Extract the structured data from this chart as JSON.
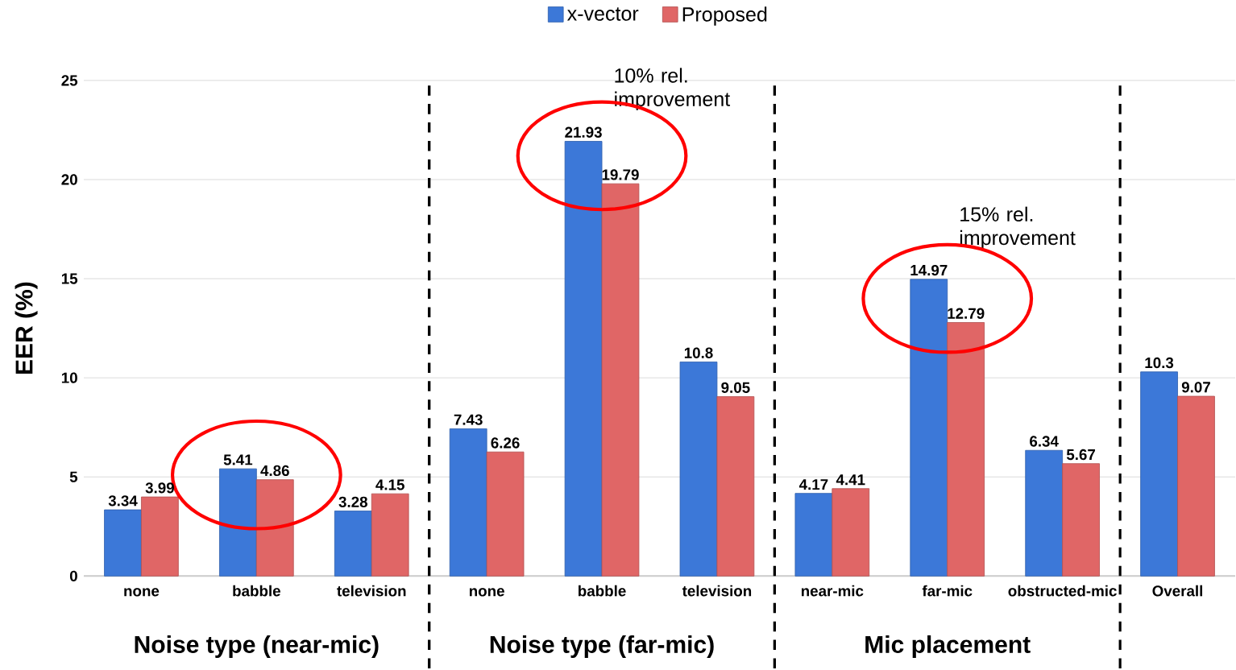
{
  "chart_data": {
    "type": "bar",
    "ylabel": "EER (%)",
    "categories": [
      "none",
      "babble",
      "television",
      "none",
      "babble",
      "television",
      "near-mic",
      "far-mic",
      "obstructed-mic",
      "Overall"
    ],
    "series": [
      {
        "name": "x-vector",
        "color": "#3c78d8",
        "values": [
          3.34,
          5.41,
          3.28,
          7.43,
          21.93,
          10.8,
          4.17,
          14.97,
          6.34,
          10.3
        ]
      },
      {
        "name": "Proposed",
        "color": "#e06666",
        "values": [
          3.99,
          4.86,
          4.15,
          6.26,
          19.79,
          9.05,
          4.41,
          12.79,
          5.67,
          9.07
        ]
      }
    ],
    "ylim": [
      0,
      25
    ],
    "yticks": [
      0,
      5,
      10,
      15,
      20,
      25
    ],
    "grid": "y",
    "legend": "top",
    "data_labels": true,
    "annotations": [
      "Noise type (near-mic)",
      "Noise type (far-mic)",
      "Mic placement",
      "10% rel. improvement",
      "15% rel. improvement"
    ]
  }
}
